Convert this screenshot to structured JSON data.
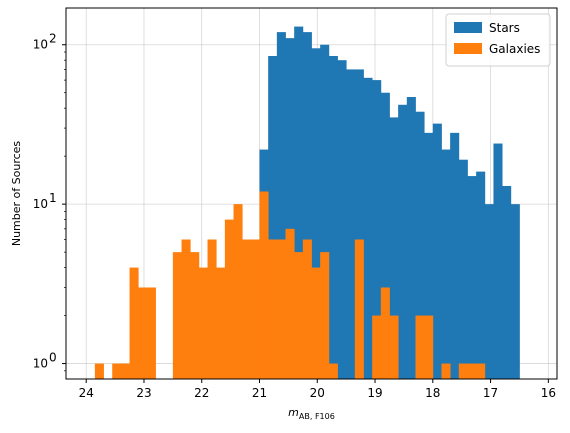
{
  "chart_data": {
    "type": "bar",
    "subtype": "histogram",
    "title": "",
    "xlabel": "m",
    "xlabel_sub": "AB, F106",
    "ylabel": "Number of Sources",
    "x_inverted": true,
    "y_scale": "log",
    "xlim": [
      24.35,
      15.85
    ],
    "ylim": [
      0.8,
      170
    ],
    "grid": true,
    "legend_position": "top-right",
    "x_ticks": [
      24,
      23,
      22,
      21,
      20,
      19,
      18,
      17,
      16
    ],
    "x_tick_labels": [
      "24",
      "23",
      "22",
      "21",
      "20",
      "19",
      "18",
      "17",
      "16"
    ],
    "y_ticks": [
      1,
      10,
      100
    ],
    "y_tick_labels": [
      "10",
      "10",
      "10"
    ],
    "y_tick_exponents": [
      "0",
      "1",
      "2"
    ],
    "bin_width": 0.15,
    "series": [
      {
        "name": "Stars",
        "color": "#1f77b4",
        "bins": [
          [
            21.0,
            22
          ],
          [
            20.85,
            85
          ],
          [
            20.7,
            120
          ],
          [
            20.55,
            110
          ],
          [
            20.4,
            130
          ],
          [
            20.25,
            120
          ],
          [
            20.1,
            95
          ],
          [
            19.95,
            100
          ],
          [
            19.8,
            85
          ],
          [
            19.65,
            80
          ],
          [
            19.5,
            70
          ],
          [
            19.35,
            70
          ],
          [
            19.2,
            62
          ],
          [
            19.05,
            60
          ],
          [
            18.9,
            50
          ],
          [
            18.75,
            35
          ],
          [
            18.6,
            42
          ],
          [
            18.45,
            47
          ],
          [
            18.3,
            38
          ],
          [
            18.15,
            28
          ],
          [
            18.0,
            32
          ],
          [
            17.85,
            22
          ],
          [
            17.7,
            28
          ],
          [
            17.55,
            19
          ],
          [
            17.4,
            15
          ],
          [
            17.25,
            16
          ],
          [
            17.1,
            10
          ],
          [
            16.95,
            24
          ],
          [
            16.8,
            13
          ],
          [
            16.65,
            10
          ]
        ]
      },
      {
        "name": "Galaxies",
        "color": "#ff7f0e",
        "bins": [
          [
            23.85,
            1
          ],
          [
            23.55,
            1
          ],
          [
            23.4,
            1
          ],
          [
            23.25,
            4
          ],
          [
            23.1,
            3
          ],
          [
            22.95,
            3
          ],
          [
            22.5,
            5
          ],
          [
            22.35,
            6
          ],
          [
            22.2,
            5
          ],
          [
            22.05,
            4
          ],
          [
            21.9,
            6
          ],
          [
            21.75,
            4
          ],
          [
            21.6,
            8
          ],
          [
            21.45,
            10
          ],
          [
            21.3,
            6
          ],
          [
            21.15,
            6
          ],
          [
            21.0,
            12
          ],
          [
            20.85,
            6
          ],
          [
            20.7,
            6
          ],
          [
            20.55,
            7
          ],
          [
            20.4,
            5
          ],
          [
            20.25,
            6
          ],
          [
            20.1,
            4
          ],
          [
            19.95,
            5
          ],
          [
            19.8,
            1
          ],
          [
            19.35,
            6
          ],
          [
            19.05,
            2
          ],
          [
            18.9,
            3
          ],
          [
            18.75,
            2
          ],
          [
            18.3,
            2
          ],
          [
            18.15,
            2
          ],
          [
            17.85,
            1
          ],
          [
            17.55,
            1
          ],
          [
            17.4,
            1
          ],
          [
            17.25,
            1
          ]
        ]
      }
    ]
  }
}
